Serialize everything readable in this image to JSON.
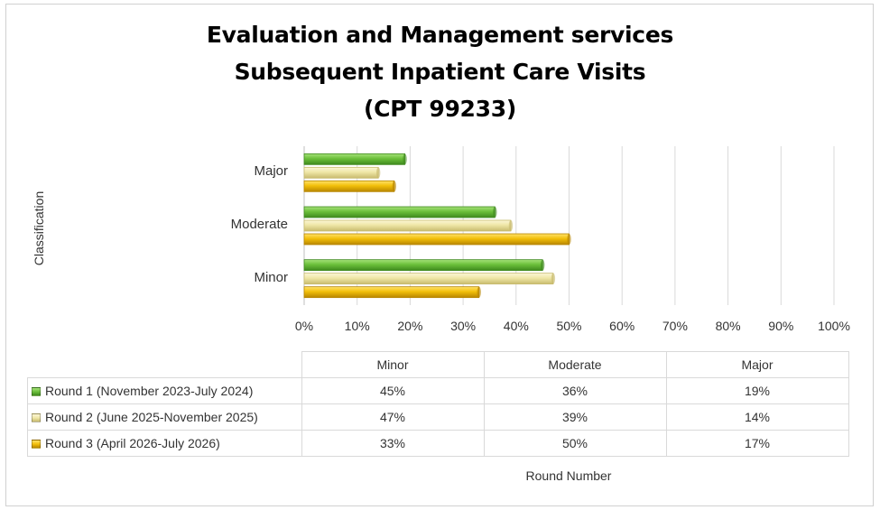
{
  "chart_data": {
    "type": "bar",
    "orientation": "horizontal",
    "title_lines": [
      "Evaluation and Management services",
      "Subsequent Inpatient Care Visits",
      "(CPT 99233)"
    ],
    "ylabel": "Classification",
    "xlabel": "Round Number",
    "categories": [
      "Minor",
      "Moderate",
      "Major"
    ],
    "xlim": [
      0,
      100
    ],
    "xticks": [
      "0%",
      "10%",
      "20%",
      "30%",
      "40%",
      "50%",
      "60%",
      "70%",
      "80%",
      "90%",
      "100%"
    ],
    "grid": true,
    "series": [
      {
        "name": "Round 1 (November 2023-July 2024)",
        "values": [
          45,
          36,
          19
        ],
        "labels": [
          "45%",
          "36%",
          "19%"
        ],
        "color": "#6bbf3a",
        "color_light": "#a6e27a",
        "color_dark": "#3f8a1e"
      },
      {
        "name": "Round 2 (June 2025-November 2025)",
        "values": [
          47,
          39,
          14
        ],
        "labels": [
          "47%",
          "39%",
          "14%"
        ],
        "color": "#efe6a6",
        "color_light": "#fbf6d6",
        "color_dark": "#c8bb6e"
      },
      {
        "name": "Round 3 (April 2026-July 2026)",
        "values": [
          33,
          50,
          17
        ],
        "labels": [
          "33%",
          "50%",
          "17%"
        ],
        "color": "#f2bf0a",
        "color_light": "#ffe26a",
        "color_dark": "#b88600"
      }
    ]
  }
}
